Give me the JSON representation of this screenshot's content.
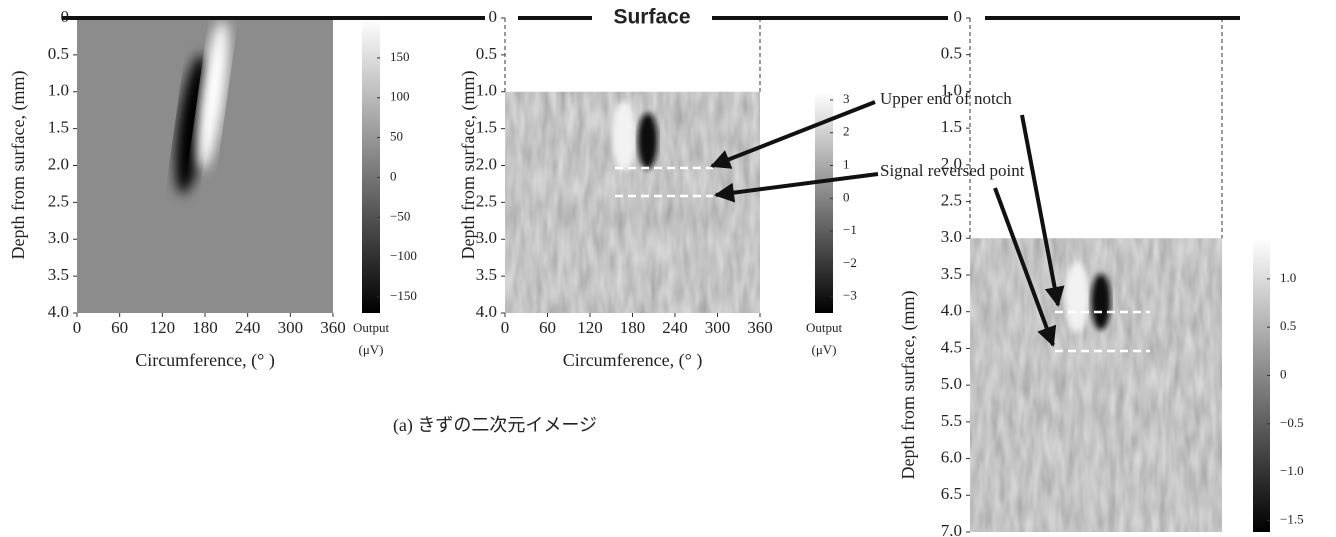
{
  "chart_data": [
    {
      "type": "heatmap",
      "ylabel": "Depth from surface, (mm)",
      "xlabel": "Circumference, (° )",
      "xlim": [
        0,
        360
      ],
      "xticks": [
        0,
        60,
        120,
        180,
        240,
        300,
        360
      ],
      "ylim": [
        0,
        4
      ],
      "data_ylim": [
        0,
        4
      ],
      "yticks": [
        0,
        0.5,
        {
          "value": 1,
          "label": "1.0"
        },
        1.5,
        {
          "value": 2,
          "label": "2.0"
        },
        2.5,
        {
          "value": 3,
          "label": "3.0"
        },
        3.5,
        {
          "value": 4,
          "label": "4.0"
        }
      ],
      "colorbar": {
        "label": "Output",
        "unit": "(μV)",
        "lim": [
          -170,
          200
        ],
        "ticks": [
          150,
          100,
          50,
          0,
          {
            "value": -50,
            "label": "−50"
          },
          {
            "value": -100,
            "label": "−100"
          },
          {
            "value": -150,
            "label": "−150"
          }
        ]
      }
    },
    {
      "type": "heatmap",
      "ylabel": "Depth from surface, (mm)",
      "xlabel": "Circumference, (° )",
      "xlim": [
        0,
        360
      ],
      "xticks": [
        0,
        60,
        120,
        180,
        240,
        300,
        360
      ],
      "ylim": [
        0,
        4
      ],
      "data_ylim": [
        1,
        4
      ],
      "yticks": [
        0,
        0.5,
        {
          "value": 1,
          "label": "1.0"
        },
        1.5,
        {
          "value": 2,
          "label": "2.0"
        },
        2.5,
        {
          "value": 3,
          "label": "3.0"
        },
        3.5,
        {
          "value": 4,
          "label": "4.0"
        }
      ],
      "colorbar": {
        "label": "Output",
        "unit": "(μV)",
        "lim": [
          -3.5,
          3.25
        ],
        "ticks": [
          3,
          2,
          1,
          0,
          {
            "value": -1,
            "label": "−1"
          },
          {
            "value": -2,
            "label": "−2"
          },
          {
            "value": -3,
            "label": "−3"
          }
        ]
      }
    },
    {
      "type": "heatmap",
      "ylabel": "Depth from surface, (mm)",
      "ylim": [
        0,
        7
      ],
      "data_ylim": [
        3,
        7
      ],
      "yticks": [
        0,
        0.5,
        {
          "value": 1,
          "label": "1.0"
        },
        1.5,
        {
          "value": 2,
          "label": "2.0"
        },
        2.5,
        {
          "value": 3,
          "label": "3.0"
        },
        3.5,
        {
          "value": 4,
          "label": "4.0"
        },
        4.5,
        {
          "value": 5,
          "label": "5.0"
        },
        5.5,
        {
          "value": 6,
          "label": "6.0"
        },
        6.5,
        {
          "value": 7,
          "label": "7.0"
        }
      ],
      "colorbar": {
        "lim": [
          -1.62,
          1.42
        ],
        "ticks": [
          {
            "value": 1,
            "label": "1.0"
          },
          0.5,
          0,
          {
            "value": -0.5,
            "label": "−0.5"
          },
          {
            "value": -1,
            "label": "−1.0"
          },
          {
            "value": -1.5,
            "label": "−1.5"
          }
        ]
      }
    }
  ],
  "surface_label": "Surface",
  "annotations": [
    "Upper end of notch",
    "Signal reversed point"
  ],
  "caption": "(a) きずの二次元イメージ"
}
